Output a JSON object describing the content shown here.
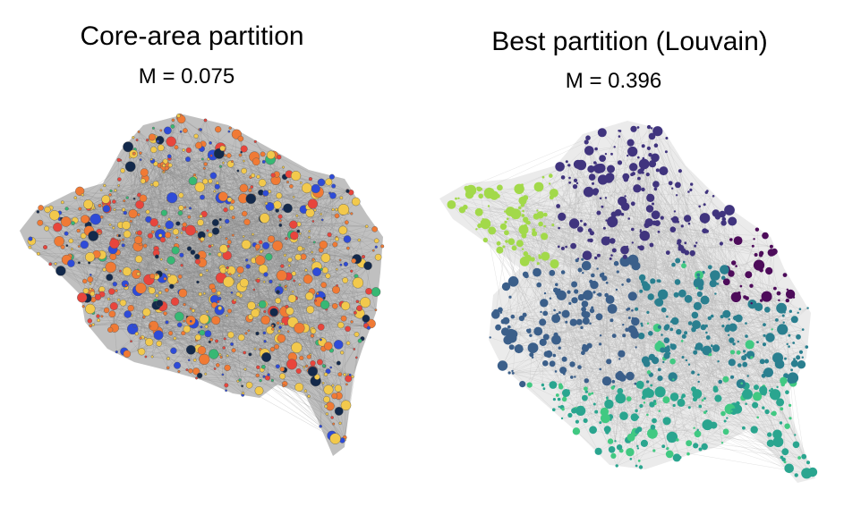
{
  "panels": [
    {
      "title": "Core-area partition",
      "modularity_symbol": "M",
      "modularity_value": "= 0.075",
      "palette": [
        "#f2c94c",
        "#f07a35",
        "#e8453c",
        "#2e4bd8",
        "#13294b",
        "#37b874",
        "#9a9a9a"
      ],
      "edge_color": "#8c8c8c"
    },
    {
      "title": "Best partition (Louvain)",
      "modularity_symbol": "M",
      "modularity_value": "= 0.396",
      "palette": [
        "#a2d94a",
        "#40347e",
        "#3b5f8a",
        "#2a7f8f",
        "#2aa58f",
        "#4d0b5a",
        "#41c982"
      ],
      "edge_color": "#b8b8b8"
    }
  ]
}
